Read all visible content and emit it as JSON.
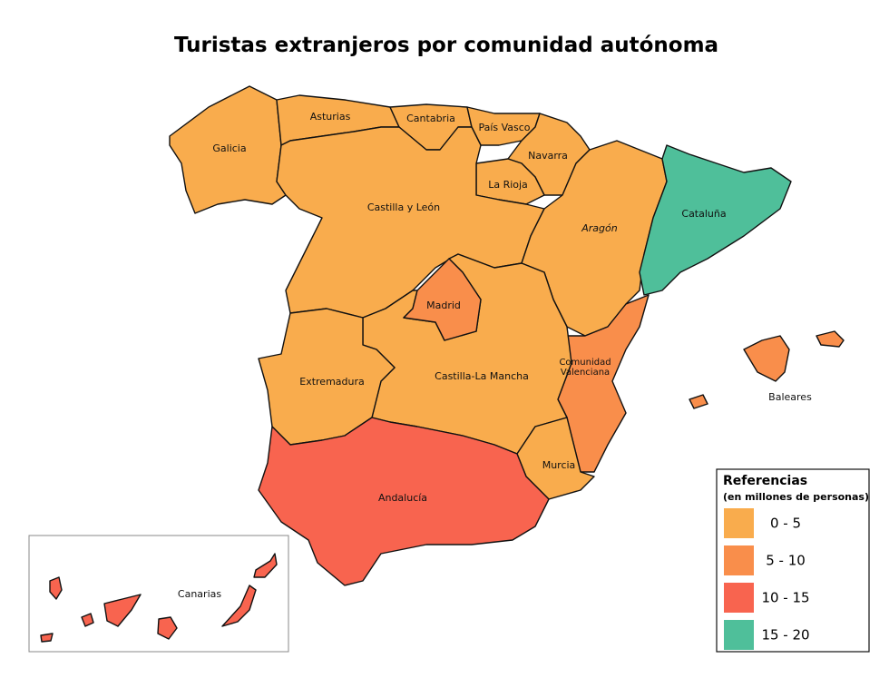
{
  "title": "Turistas extranjeros por comunidad autónoma",
  "regions": [
    {
      "label": "Galicia",
      "color": "#F9AC4D"
    },
    {
      "label": "Asturias",
      "color": "#F9AC4D"
    },
    {
      "label": "Cantabria",
      "color": "#F9AC4D"
    },
    {
      "label": "País Vasco",
      "color": "#F9AC4D"
    },
    {
      "label": "Navarra",
      "color": "#F9AC4D"
    },
    {
      "label": "La Rioja",
      "color": "#F9AC4D"
    },
    {
      "label": "Castilla y León",
      "color": "#F9AC4D"
    },
    {
      "label": "Aragón",
      "color": "#F9AC4D"
    },
    {
      "label": "Cataluña",
      "color": "#4FBF9A"
    },
    {
      "label": "Madrid",
      "color": "#F98E4B"
    },
    {
      "label": [
        "Comunidad",
        "Valenciana"
      ],
      "color": "#F98E4B"
    },
    {
      "label": "Castilla-La Mancha",
      "color": "#F9AC4D"
    },
    {
      "label": "Extremadura",
      "color": "#F9AC4D"
    },
    {
      "label": "Murcia",
      "color": "#F9AC4D"
    },
    {
      "label": "Andalucía",
      "color": "#F8644F"
    },
    {
      "label": "Baleares",
      "color": "#F98E4B"
    },
    {
      "label": "Canarias",
      "color": "#F8644F"
    }
  ],
  "legend": {
    "title": "Referencias",
    "subtitle": "(en millones de personas)",
    "items": [
      {
        "label": "0 - 5",
        "color": "#F9AC4D"
      },
      {
        "label": "5 - 10",
        "color": "#F98E4B"
      },
      {
        "label": "10 - 15",
        "color": "#F8644F"
      },
      {
        "label": "15 - 20",
        "color": "#4FBF9A"
      }
    ]
  }
}
